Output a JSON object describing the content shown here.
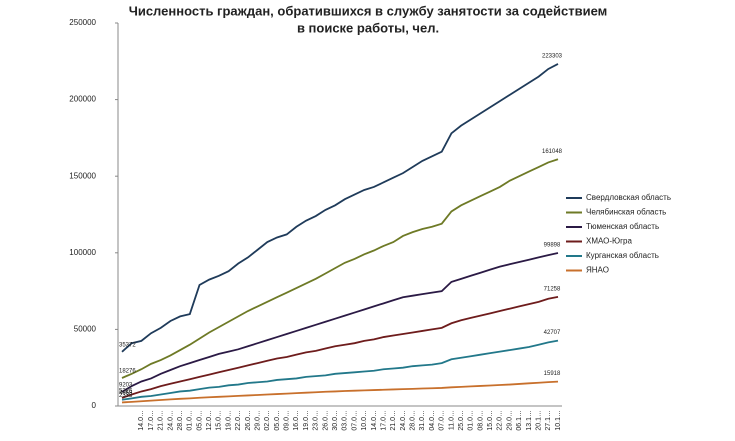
{
  "chart_data": {
    "type": "line",
    "title": [
      "Численность граждан, обратившихся в службу занятости за содействием",
      "в поиске работы, чел."
    ],
    "categories": [
      null,
      null,
      "14.0…",
      "17.0…",
      "21.0…",
      "24.0…",
      "28.0…",
      "01.0…",
      "05.0…",
      "12.0…",
      "15.0…",
      "19.0…",
      "22.0…",
      "26.0…",
      "29.0…",
      "02.0…",
      "05.0…",
      "09.0…",
      "16.0…",
      "19.0…",
      "23.0…",
      "26.0…",
      "30.0…",
      "03.0…",
      "07.0…",
      "10.0…",
      "14.0…",
      "17.0…",
      "21.0…",
      "24.0…",
      "28.0…",
      "31.0…",
      "04.0…",
      "07.0…",
      "11.0…",
      "25.0…",
      "01.0…",
      "08.0…",
      "15.0…",
      "22.0…",
      "29.0…",
      "06.1…",
      "13.1…",
      "20.1…",
      "27.1…",
      "10.1…"
    ],
    "series": [
      {
        "name": "Свердловская область",
        "color": "#1f3b5a",
        "values": [
          35372,
          41000,
          42500,
          47500,
          51000,
          55500,
          58500,
          60000,
          79000,
          82500,
          85000,
          88000,
          93000,
          97000,
          102000,
          107000,
          110000,
          112000,
          117000,
          121000,
          124000,
          128000,
          131000,
          135000,
          138000,
          141000,
          143000,
          146000,
          149000,
          152000,
          156000,
          160000,
          163000,
          166000,
          178000,
          183000,
          187000,
          191000,
          195000,
          199000,
          203000,
          207000,
          211000,
          215000,
          220000,
          223303
        ]
      },
      {
        "name": "Челябинская область",
        "color": "#6e7a26",
        "values": [
          18276,
          21000,
          24000,
          27500,
          30000,
          33000,
          36500,
          40000,
          44000,
          48000,
          51500,
          55000,
          58500,
          62000,
          65000,
          68000,
          71000,
          74000,
          77000,
          80000,
          83000,
          86500,
          90000,
          93500,
          96000,
          99000,
          101500,
          104500,
          107000,
          111000,
          113500,
          115500,
          117000,
          119000,
          127000,
          131000,
          134000,
          137000,
          140000,
          143000,
          147000,
          150000,
          153000,
          156000,
          159000,
          161048
        ]
      },
      {
        "name": "Тюменская область",
        "color": "#2b1a45",
        "values": [
          9203,
          13000,
          16000,
          18000,
          21000,
          23500,
          26000,
          28000,
          30000,
          32000,
          34000,
          35500,
          37000,
          39000,
          41000,
          43000,
          45000,
          47000,
          49000,
          51000,
          53000,
          55000,
          57000,
          59000,
          61000,
          63000,
          65000,
          67000,
          69000,
          71000,
          72000,
          73000,
          74000,
          75000,
          81000,
          83000,
          85000,
          87000,
          89000,
          91000,
          92500,
          94000,
          95500,
          97000,
          98500,
          99898
        ]
      },
      {
        "name": "ХМАО-Югра",
        "color": "#6e1c1c",
        "values": [
          5326,
          7500,
          9500,
          11000,
          13000,
          14500,
          16000,
          17500,
          19000,
          20500,
          22000,
          23500,
          25000,
          26500,
          28000,
          29500,
          31000,
          32000,
          33500,
          35000,
          36000,
          37500,
          39000,
          40000,
          41000,
          42500,
          43500,
          45000,
          46000,
          47000,
          48000,
          49000,
          50000,
          51000,
          54000,
          56000,
          57500,
          59000,
          60500,
          62000,
          63500,
          65000,
          66500,
          68000,
          70000,
          71258
        ]
      },
      {
        "name": "Курганская область",
        "color": "#22788a",
        "values": [
          4059,
          5000,
          6000,
          6500,
          7500,
          8500,
          9500,
          10000,
          11000,
          12000,
          12500,
          13500,
          14000,
          15000,
          15500,
          16000,
          17000,
          17500,
          18000,
          19000,
          19500,
          20000,
          21000,
          21500,
          22000,
          22500,
          23000,
          24000,
          24500,
          25000,
          26000,
          26500,
          27000,
          28000,
          30500,
          31500,
          32500,
          33500,
          34500,
          35500,
          36500,
          37500,
          38500,
          40000,
          41500,
          42707
        ]
      },
      {
        "name": "ЯНАО",
        "color": "#c8702c",
        "values": [
          2335,
          2700,
          3100,
          3500,
          3900,
          4300,
          4700,
          5000,
          5400,
          5700,
          6000,
          6300,
          6600,
          6900,
          7200,
          7500,
          7800,
          8100,
          8400,
          8700,
          9000,
          9300,
          9500,
          9800,
          10000,
          10200,
          10400,
          10600,
          10800,
          11000,
          11200,
          11400,
          11600,
          11800,
          12200,
          12500,
          12800,
          13100,
          13400,
          13700,
          14000,
          14400,
          14800,
          15200,
          15600,
          15918
        ]
      }
    ],
    "ylim": [
      0,
      250000
    ],
    "yticks": [
      0,
      50000,
      100000,
      150000,
      200000,
      250000
    ],
    "grid": false,
    "legend": "right"
  }
}
